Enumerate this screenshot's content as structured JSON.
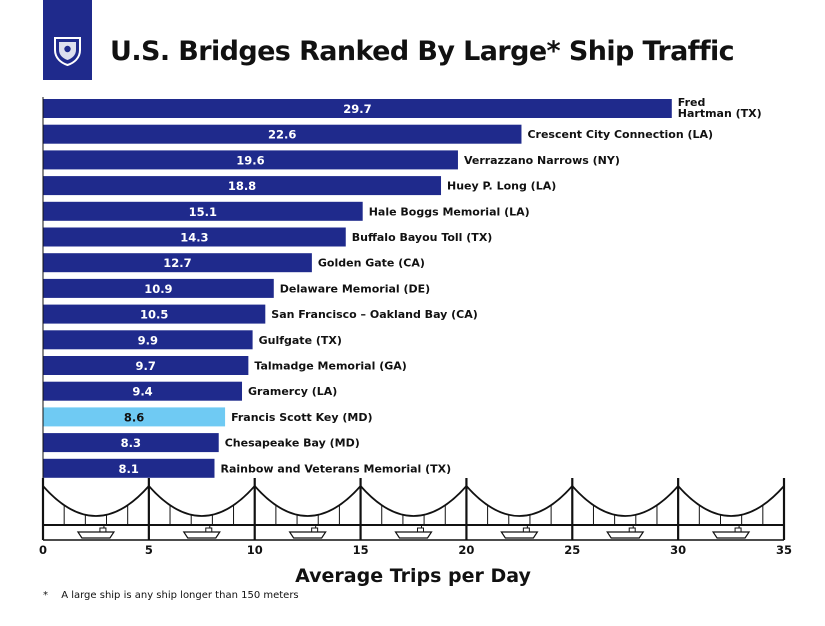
{
  "header": {
    "title": "U.S. Bridges Ranked By Large* Ship Traffic"
  },
  "footnote": {
    "marker": "*",
    "text": "A large ship is any ship longer than 150 meters"
  },
  "colors": {
    "bar": "#1f2a8c",
    "highlight": "#6fcaf3",
    "text": "#111111"
  },
  "chart_data": {
    "type": "bar",
    "orientation": "horizontal",
    "title": "U.S. Bridges Ranked By Large* Ship Traffic",
    "xlabel": "Average Trips per Day",
    "ylabel": "",
    "xlim": [
      0,
      35
    ],
    "xticks": [
      0,
      5,
      10,
      15,
      20,
      25,
      30,
      35
    ],
    "categories": [
      "Fred Hartman (TX)",
      "Crescent City Connection (LA)",
      "Verrazzano Narrows (NY)",
      "Huey P. Long (LA)",
      "Hale Boggs Memorial (LA)",
      "Buffalo Bayou Toll (TX)",
      "Golden Gate (CA)",
      "Delaware Memorial (DE)",
      "San Francisco – Oakland Bay (CA)",
      "Gulfgate (TX)",
      "Talmadge Memorial (GA)",
      "Gramercy (LA)",
      "Francis Scott Key (MD)",
      "Chesapeake Bay (MD)",
      "Rainbow and Veterans Memorial (TX)"
    ],
    "values": [
      29.7,
      22.6,
      19.6,
      18.8,
      15.1,
      14.3,
      12.7,
      10.9,
      10.5,
      9.9,
      9.7,
      9.4,
      8.6,
      8.3,
      8.1
    ],
    "value_labels": [
      "29.7",
      "22.6",
      "19.6",
      "18.8",
      "15.1",
      "14.3",
      "12.7",
      "10.9",
      "10.5",
      "9.9",
      "9.7",
      "9.4",
      "8.6",
      "8.3",
      "8.1"
    ],
    "highlight_category": "Francis Scott Key (MD)",
    "ship_icons": [
      "ship-icon",
      "ship-icon",
      "ship-icon",
      "ship-icon",
      "ship-icon",
      "ship-icon",
      "ship-icon"
    ]
  }
}
